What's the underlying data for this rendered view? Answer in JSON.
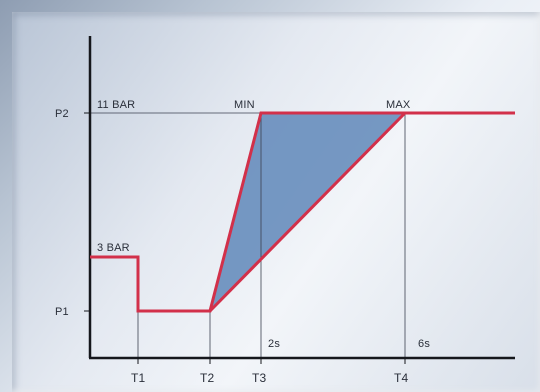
{
  "diagram": {
    "axis_labels": {
      "p2": "P2",
      "p1": "P1",
      "t1": "T1",
      "t2": "T2",
      "t3": "T3",
      "t4": "T4"
    },
    "annotations": {
      "p2_pressure": "11 BAR",
      "initial_pressure": "3 BAR",
      "min": "MIN",
      "max": "MAX",
      "time_min": "2s",
      "time_max": "6s"
    },
    "colors": {
      "curve": "#d2304a",
      "fill": "#5f87b8",
      "axis": "#15171c",
      "guide": "#3b4150"
    }
  }
}
